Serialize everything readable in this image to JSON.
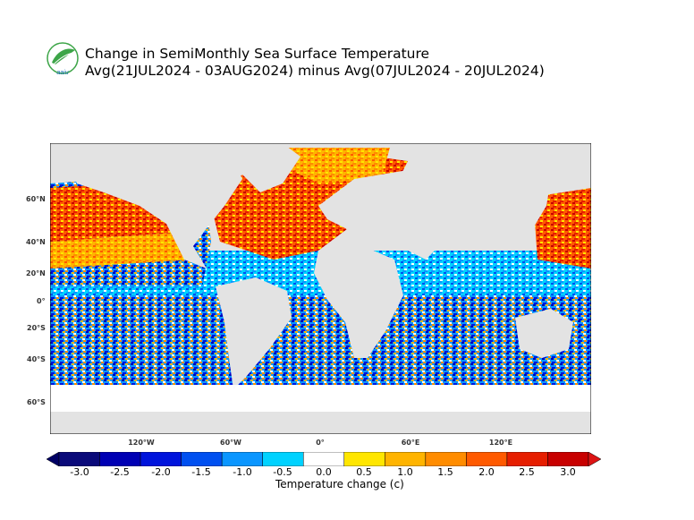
{
  "header": {
    "title": "Change in SemiMonthly Sea Surface Temperature",
    "subtitle": "Avg(21JUL2024 - 03AUG2024) minus Avg(07JUL2024 - 20JUL2024)",
    "logo_text": "aaiu"
  },
  "map": {
    "lat_labels": [
      "60°N",
      "40°N",
      "20°N",
      "0°",
      "20°S",
      "40°S",
      "60°S"
    ],
    "lon_labels": [
      "120°W",
      "60°W",
      "0°",
      "60°E",
      "120°E"
    ]
  },
  "legend": {
    "title": "Temperature change  (c)",
    "ticks": [
      "-3.0",
      "-2.5",
      "-2.0",
      "-1.5",
      "-1.0",
      "-0.5",
      "0.0",
      "0.5",
      "1.0",
      "1.5",
      "2.0",
      "2.5",
      "3.0"
    ],
    "colors": [
      "#0a0a7a",
      "#0000b4",
      "#0014dc",
      "#0050f0",
      "#0a96ff",
      "#00d2ff",
      "#ffffff",
      "#ffe600",
      "#ffb400",
      "#ff8c00",
      "#ff5a00",
      "#e61e00",
      "#c80000"
    ],
    "low_color": "#000064",
    "high_color": "#dc1414"
  },
  "colors": {
    "land": "#e3e3e3",
    "no_data": "#ffffff",
    "logo_green": "#3da548"
  }
}
